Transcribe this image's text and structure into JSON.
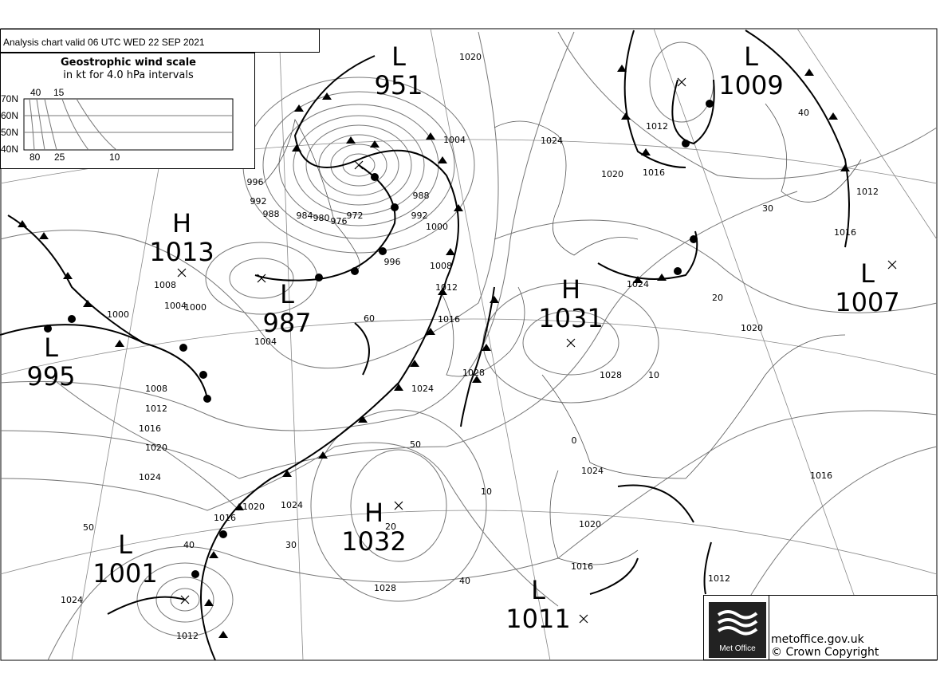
{
  "header": {
    "title": "Analysis chart  valid 06 UTC WED 22  SEP 2021"
  },
  "wind_scale": {
    "title": "Geostrophic wind scale",
    "subtitle": "in kt for 4.0 hPa intervals",
    "latitudes": [
      "70N",
      "60N",
      "50N",
      "40N"
    ],
    "top_labels": [
      "40",
      "15"
    ],
    "bottom_labels": [
      "80",
      "25",
      "10"
    ]
  },
  "pressure_systems": [
    {
      "type": "L",
      "value": "951"
    },
    {
      "type": "L",
      "value": "1009"
    },
    {
      "type": "H",
      "value": "1013"
    },
    {
      "type": "L",
      "value": "987"
    },
    {
      "type": "L",
      "value": "995"
    },
    {
      "type": "H",
      "value": "1031"
    },
    {
      "type": "L",
      "value": "1007"
    },
    {
      "type": "H",
      "value": "1032"
    },
    {
      "type": "L",
      "value": "1001"
    },
    {
      "type": "L",
      "value": "1011"
    }
  ],
  "isobar_labels": [
    "1020",
    "1024",
    "1020",
    "1016",
    "1012",
    "40",
    "1012",
    "1016",
    "30",
    "1024",
    "20",
    "1020",
    "1028",
    "10",
    "0",
    "1024",
    "1020",
    "1016",
    "1012",
    "1016",
    "10",
    "40",
    "1028",
    "20",
    "30",
    "1024",
    "1020",
    "1016",
    "50",
    "40",
    "1024",
    "1012",
    "50",
    "1024",
    "1028",
    "1016",
    "1012",
    "1008",
    "1004",
    "1000",
    "996",
    "992",
    "988",
    "984",
    "980",
    "976",
    "972",
    "996",
    "992",
    "988",
    "1008",
    "1004",
    "1000",
    "1000",
    "1004",
    "60",
    "1008",
    "1012",
    "1016",
    "1020",
    "1024"
  ],
  "footer": {
    "logo_text": "Met Office",
    "url": "metoffice.gov.uk",
    "copyright": "© Crown Copyright"
  }
}
